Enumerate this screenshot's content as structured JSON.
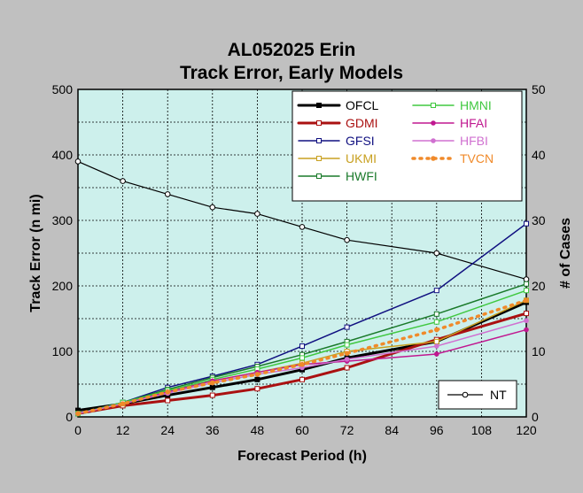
{
  "chart_data": {
    "type": "line",
    "title": "AL052025 Erin",
    "subtitle": "Track Error, Early Models",
    "xlabel": "Forecast Period (h)",
    "ylabel": "Track Error (n mi)",
    "y2label": "# of Cases",
    "x_ticks": [
      "0",
      "12",
      "24",
      "36",
      "48",
      "60",
      "72",
      "84",
      "96",
      "108",
      "120"
    ],
    "y_ticks": [
      "0",
      "100",
      "200",
      "300",
      "400",
      "500"
    ],
    "y2_ticks": [
      "0",
      "10",
      "20",
      "30",
      "40",
      "50"
    ],
    "xlim": [
      0,
      120
    ],
    "ylim": [
      0,
      500
    ],
    "y2lim": [
      0,
      50
    ],
    "grid": true,
    "legend_position": "top-right",
    "series": [
      {
        "name": "OFCL",
        "color": "#000000",
        "width": 3,
        "marker": "square-filled",
        "dash": "",
        "x": [
          0,
          12,
          24,
          36,
          48,
          60,
          72,
          96,
          120
        ],
        "values": [
          10,
          20,
          33,
          45,
          57,
          72,
          90,
          115,
          175
        ]
      },
      {
        "name": "GDMI",
        "color": "#aa1111",
        "width": 3,
        "marker": "square-open",
        "dash": "",
        "x": [
          0,
          12,
          24,
          36,
          48,
          60,
          72,
          96,
          120
        ],
        "values": [
          5,
          17,
          25,
          33,
          43,
          57,
          75,
          118,
          158
        ]
      },
      {
        "name": "GFSI",
        "color": "#101080",
        "width": 1.5,
        "marker": "square-open",
        "dash": "",
        "x": [
          0,
          12,
          24,
          36,
          48,
          60,
          72,
          96,
          120
        ],
        "values": [
          5,
          22,
          45,
          62,
          80,
          108,
          137,
          193,
          295
        ]
      },
      {
        "name": "UKMI",
        "color": "#c8a020",
        "width": 1.5,
        "marker": "square-open",
        "dash": "",
        "x": [
          0,
          12,
          24,
          36,
          48,
          60,
          72,
          96,
          120
        ],
        "values": [
          5,
          20,
          38,
          55,
          68,
          82,
          100,
          115,
          178
        ]
      },
      {
        "name": "HWFI",
        "color": "#1a7a2a",
        "width": 1.5,
        "marker": "square-open",
        "dash": "",
        "x": [
          0,
          12,
          24,
          36,
          48,
          60,
          72,
          96,
          120
        ],
        "values": [
          5,
          22,
          42,
          60,
          77,
          95,
          115,
          157,
          203
        ]
      },
      {
        "name": "HMNI",
        "color": "#40c840",
        "width": 1.5,
        "marker": "square-open",
        "dash": "",
        "x": [
          0,
          12,
          24,
          36,
          48,
          60,
          72,
          96,
          120
        ],
        "values": [
          5,
          22,
          40,
          57,
          73,
          90,
          110,
          145,
          193
        ]
      },
      {
        "name": "HFAI",
        "color": "#c01890",
        "width": 1.5,
        "marker": "circle-filled",
        "dash": "",
        "x": [
          0,
          12,
          24,
          36,
          48,
          60,
          72,
          96,
          120
        ],
        "values": [
          5,
          20,
          38,
          55,
          68,
          80,
          85,
          96,
          133
        ]
      },
      {
        "name": "HFBI",
        "color": "#d070d0",
        "width": 1.5,
        "marker": "circle-filled",
        "dash": "",
        "x": [
          0,
          12,
          24,
          36,
          48,
          60,
          72,
          96,
          120
        ],
        "values": [
          5,
          20,
          36,
          52,
          65,
          75,
          88,
          108,
          147
        ]
      },
      {
        "name": "TVCN",
        "color": "#f08a2a",
        "width": 3.5,
        "marker": "circle-filled",
        "dash": "2,6",
        "x": [
          0,
          12,
          24,
          36,
          48,
          60,
          72,
          96,
          120
        ],
        "values": [
          5,
          20,
          38,
          52,
          65,
          80,
          97,
          133,
          178
        ]
      }
    ],
    "cases_series": {
      "name": "NT",
      "color": "#000000",
      "axis": "y2",
      "x": [
        0,
        12,
        24,
        36,
        48,
        60,
        72,
        96,
        120
      ],
      "values": [
        39,
        36,
        34,
        32,
        31,
        29,
        27,
        25,
        21
      ]
    }
  }
}
